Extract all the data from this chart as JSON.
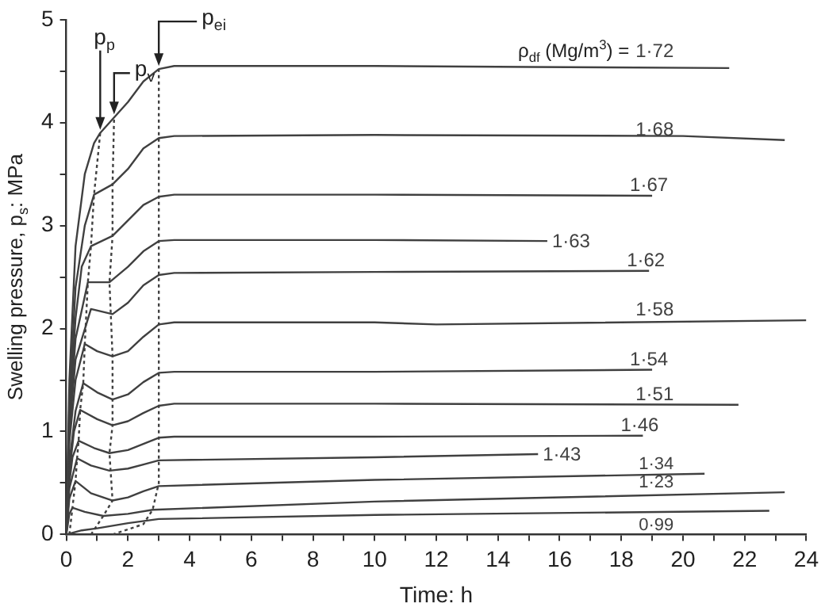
{
  "chart_data": {
    "type": "line",
    "xlabel": "Time: h",
    "ylabel": "Swelling pressure, p$_{s}$: MPa",
    "xlim": [
      0,
      24
    ],
    "xticks": [
      0,
      {
        "value": 1,
        "label": null
      },
      2,
      {
        "value": 3,
        "label": null
      },
      4,
      {
        "value": 5,
        "label": null
      },
      6,
      {
        "value": 7,
        "label": null
      },
      8,
      {
        "value": 9,
        "label": null
      },
      10,
      {
        "value": 11,
        "label": null
      },
      12,
      {
        "value": 13,
        "label": null
      },
      14,
      {
        "value": 15,
        "label": null
      },
      16,
      {
        "value": 17,
        "label": null
      },
      18,
      {
        "value": 19,
        "label": null
      },
      20,
      {
        "value": 21,
        "label": null
      },
      22,
      {
        "value": 23,
        "label": null
      },
      24
    ],
    "ylim": [
      0,
      5
    ],
    "yticks": [
      0,
      {
        "value": 0.5,
        "label": null
      },
      1,
      {
        "value": 1.5,
        "label": null
      },
      2,
      {
        "value": 2.5,
        "label": null
      },
      3,
      {
        "value": 3.5,
        "label": null
      },
      4,
      {
        "value": 4.5,
        "label": null
      },
      5
    ],
    "grid": false,
    "legend": false,
    "marker": "none",
    "annotations": [
      "ρ$_{df}$ (Mg/m$^{3}$) =",
      {
        "text": "p$_{p}$",
        "x": 1.1,
        "y": 3.9
      },
      {
        "text": "p$_{v}$",
        "x": 1.55,
        "y": 4.05
      },
      {
        "text": "p$_{ei}$",
        "x": 3,
        "y": 4.52
      }
    ],
    "series": [
      {
        "name": "1·72",
        "color": "#404040",
        "x": [
          0,
          0.1,
          0.3,
          0.6,
          0.9,
          1.1,
          1.55,
          2,
          2.5,
          3,
          3.5,
          5,
          10,
          15,
          21.5
        ],
        "values": [
          0,
          1.5,
          2.8,
          3.5,
          3.8,
          3.9,
          4.05,
          4.2,
          4.4,
          4.52,
          4.55,
          4.55,
          4.55,
          4.54,
          4.53
        ]
      },
      {
        "name": "1·68",
        "color": "#404040",
        "x": [
          0,
          0.1,
          0.3,
          0.6,
          0.9,
          1.5,
          2,
          2.5,
          3,
          3.5,
          10,
          20,
          23.3
        ],
        "values": [
          0,
          1.3,
          2.4,
          3.0,
          3.3,
          3.4,
          3.55,
          3.75,
          3.85,
          3.87,
          3.88,
          3.87,
          3.83
        ]
      },
      {
        "name": "1·67",
        "color": "#404040",
        "x": [
          0,
          0.1,
          0.3,
          0.5,
          0.8,
          1.5,
          2,
          2.5,
          3,
          3.5,
          10,
          19
        ],
        "values": [
          0,
          1.2,
          2.1,
          2.6,
          2.8,
          2.9,
          3.05,
          3.2,
          3.28,
          3.3,
          3.3,
          3.29
        ]
      },
      {
        "name": "1·63",
        "color": "#404040",
        "x": [
          0,
          0.1,
          0.3,
          0.7,
          1.4,
          2,
          2.5,
          3,
          3.5,
          10,
          15.6
        ],
        "values": [
          0,
          1.1,
          1.9,
          2.45,
          2.45,
          2.6,
          2.75,
          2.85,
          2.86,
          2.86,
          2.85
        ]
      },
      {
        "name": "1·62",
        "color": "#404040",
        "x": [
          0,
          0.1,
          0.3,
          0.8,
          1.5,
          2,
          2.5,
          3,
          3.5,
          10,
          18.9
        ],
        "values": [
          0,
          1.0,
          1.7,
          2.19,
          2.14,
          2.25,
          2.42,
          2.52,
          2.54,
          2.55,
          2.56
        ]
      },
      {
        "name": "1·58",
        "color": "#404040",
        "x": [
          0,
          0.1,
          0.3,
          0.6,
          1.0,
          1.5,
          2,
          2.5,
          3,
          3.5,
          10,
          12,
          24
        ],
        "values": [
          0,
          0.9,
          1.5,
          1.85,
          1.78,
          1.73,
          1.78,
          1.92,
          2.04,
          2.06,
          2.06,
          2.04,
          2.08
        ]
      },
      {
        "name": "1·54",
        "color": "#404040",
        "x": [
          0,
          0.1,
          0.3,
          0.55,
          1,
          1.5,
          2,
          2.5,
          3,
          3.5,
          10,
          19
        ],
        "values": [
          0,
          0.7,
          1.2,
          1.47,
          1.38,
          1.31,
          1.36,
          1.48,
          1.57,
          1.58,
          1.58,
          1.6
        ]
      },
      {
        "name": "1·51",
        "color": "#404040",
        "x": [
          0,
          0.1,
          0.25,
          0.45,
          1,
          1.5,
          2,
          2.5,
          3,
          3.5,
          10,
          21.8
        ],
        "values": [
          0,
          0.6,
          1.0,
          1.21,
          1.12,
          1.06,
          1.1,
          1.18,
          1.25,
          1.27,
          1.27,
          1.26
        ]
      },
      {
        "name": "1·46",
        "color": "#404040",
        "x": [
          0,
          0.1,
          0.2,
          0.4,
          0.9,
          1.4,
          2,
          2.5,
          3,
          3.5,
          10,
          18.7
        ],
        "values": [
          0,
          0.5,
          0.75,
          0.91,
          0.84,
          0.79,
          0.82,
          0.88,
          0.94,
          0.95,
          0.95,
          0.96
        ]
      },
      {
        "name": "1·43",
        "color": "#404040",
        "x": [
          0,
          0.1,
          0.35,
          0.8,
          1.4,
          2,
          2.5,
          3,
          10,
          15.3
        ],
        "values": [
          0,
          0.45,
          0.74,
          0.67,
          0.62,
          0.64,
          0.68,
          0.72,
          0.75,
          0.78
        ]
      },
      {
        "name": "1·34",
        "color": "#404040",
        "x": [
          0,
          0.1,
          0.3,
          0.8,
          1.5,
          2,
          2.5,
          3,
          10,
          20.7
        ],
        "values": [
          0,
          0.35,
          0.52,
          0.4,
          0.33,
          0.36,
          0.42,
          0.47,
          0.53,
          0.59
        ]
      },
      {
        "name": "1·23",
        "color": "#404040",
        "x": [
          0,
          0.1,
          0.2,
          0.6,
          1.2,
          2,
          2.8,
          10,
          23.3
        ],
        "values": [
          0,
          0.2,
          0.26,
          0.22,
          0.18,
          0.2,
          0.24,
          0.32,
          0.41
        ]
      },
      {
        "name": "0·99",
        "color": "#404040",
        "x": [
          0,
          0.5,
          1,
          2,
          3,
          10,
          22.8
        ],
        "values": [
          0,
          0.04,
          0.06,
          0.11,
          0.15,
          0.19,
          0.23
        ]
      },
      {
        "color": "#404040",
        "line_style": "dotted",
        "x": [
          0.1,
          0.2,
          0.3,
          0.35,
          0.4,
          0.45,
          0.55,
          0.6,
          0.7,
          0.8,
          0.9,
          1.1
        ],
        "values": [
          0,
          0.26,
          0.52,
          0.74,
          0.91,
          1.21,
          1.47,
          1.85,
          2.45,
          2.8,
          3.3,
          3.9
        ]
      },
      {
        "color": "#404040",
        "line_style": "dotted",
        "x": [
          0.8,
          1.2,
          1.5,
          1.4,
          1.5,
          1.5,
          1.5,
          1.4,
          1.5,
          1.5,
          1.55
        ],
        "values": [
          0,
          0.18,
          0.33,
          0.79,
          1.06,
          1.31,
          1.73,
          2.45,
          2.9,
          3.4,
          4.05
        ]
      },
      {
        "color": "#404040",
        "line_style": "dotted",
        "x": [
          1.5,
          2.5,
          2.8,
          3,
          3,
          3
        ],
        "values": [
          0,
          0.1,
          0.24,
          0.5,
          1,
          4.52
        ]
      }
    ]
  }
}
